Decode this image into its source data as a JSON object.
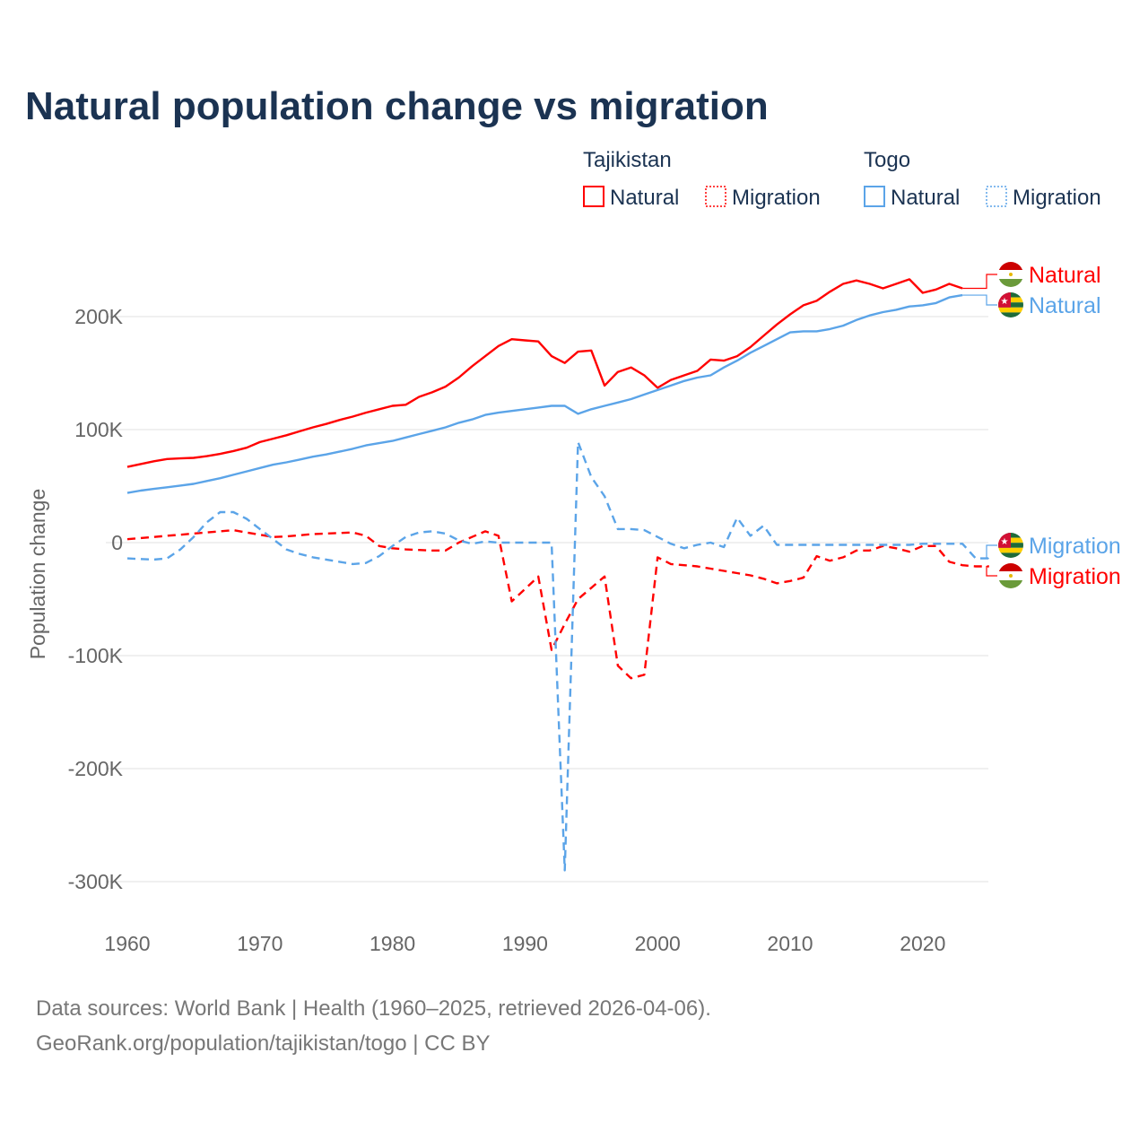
{
  "chart_data": {
    "type": "line",
    "title": "Natural population change vs migration",
    "ylabel": "Population change",
    "xlabel": "",
    "xlim": [
      1960,
      2025
    ],
    "ylim": [
      -300000,
      250000
    ],
    "x_ticks": [
      1960,
      1970,
      1980,
      1990,
      2000,
      2010,
      2020
    ],
    "x_tick_labels": [
      "1960",
      "1970",
      "1980",
      "1990",
      "2000",
      "2010",
      "2020"
    ],
    "y_ticks": [
      200000,
      100000,
      0,
      -100000,
      -200000,
      -300000
    ],
    "y_tick_labels": [
      "200K",
      "100K",
      "0",
      "-100K",
      "-200K",
      "-300K"
    ],
    "grid": true,
    "legend": {
      "placement": "top-right",
      "groups": [
        {
          "country": "Tajikistan",
          "items": [
            "Natural",
            "Migration"
          ]
        },
        {
          "country": "Togo",
          "items": [
            "Natural",
            "Migration"
          ]
        }
      ]
    },
    "series": [
      {
        "name": "Natural",
        "country": "Tajikistan",
        "color": "#ff0000",
        "dash": false,
        "end_label": "Natural",
        "flag": "tajikistan",
        "start_year": 1960,
        "values": [
          67000,
          69500,
          72000,
          74000,
          74500,
          75000,
          76500,
          78500,
          81000,
          84000,
          89000,
          92000,
          95000,
          98500,
          102000,
          105000,
          108500,
          111500,
          115000,
          118000,
          121000,
          122000,
          129000,
          133000,
          138000,
          146000,
          156000,
          165000,
          174000,
          180000,
          179000,
          178000,
          165000,
          159000,
          169000,
          170000,
          139000,
          151000,
          155000,
          148000,
          137000,
          144000,
          148000,
          152000,
          162000,
          161000,
          165000,
          173000,
          183000,
          193000,
          202000,
          210000,
          214000,
          222000,
          229000,
          232000,
          229000,
          225000,
          229000,
          233000,
          221000,
          224000,
          229000,
          225000
        ]
      },
      {
        "name": "Natural",
        "country": "Togo",
        "color": "#5ba4e8",
        "dash": false,
        "end_label": "Natural",
        "flag": "togo",
        "start_year": 1960,
        "values": [
          44000,
          46000,
          47500,
          49000,
          50500,
          52000,
          54500,
          57000,
          60000,
          63000,
          66000,
          69000,
          71000,
          73500,
          76000,
          78000,
          80500,
          83000,
          86000,
          88000,
          90000,
          93000,
          96000,
          99000,
          102000,
          106000,
          109000,
          113000,
          115000,
          116500,
          118000,
          119500,
          121000,
          121000,
          114000,
          118000,
          121000,
          124000,
          127000,
          131000,
          135000,
          139000,
          143000,
          146000,
          148000,
          155000,
          161000,
          168000,
          174000,
          180000,
          186000,
          187000,
          187000,
          189000,
          192000,
          197000,
          201000,
          204000,
          206000,
          209000,
          210000,
          212000,
          217000,
          219000
        ]
      },
      {
        "name": "Migration",
        "country": "Tajikistan",
        "color": "#ff0000",
        "dash": true,
        "end_label": "Migration",
        "flag": "tajikistan",
        "start_year": 1960,
        "values": [
          3000,
          4000,
          5000,
          6000,
          7000,
          8000,
          9000,
          10000,
          11000,
          9000,
          7000,
          5000,
          5500,
          6500,
          7500,
          8000,
          8500,
          9000,
          6000,
          -3000,
          -5000,
          -6000,
          -6500,
          -7000,
          -7000,
          0,
          5000,
          10000,
          6000,
          -52000,
          -41000,
          -30000,
          -95000,
          -72000,
          -50000,
          -40000,
          -30000,
          -109000,
          -120000,
          -117000,
          -13000,
          -19000,
          -20000,
          -21000,
          -23000,
          -25000,
          -27000,
          -29000,
          -32000,
          -36000,
          -34000,
          -31000,
          -12000,
          -16000,
          -13000,
          -7000,
          -7000,
          -3000,
          -5000,
          -8000,
          -3000,
          -3000,
          -17000,
          -20000,
          -21000,
          -21000
        ]
      },
      {
        "name": "Migration",
        "country": "Togo",
        "color": "#5ba4e8",
        "dash": true,
        "end_label": "Migration",
        "flag": "togo",
        "start_year": 1960,
        "values": [
          -14000,
          -14500,
          -15000,
          -14000,
          -6000,
          5000,
          18000,
          27000,
          27000,
          21000,
          12000,
          3000,
          -6000,
          -10000,
          -13000,
          -15000,
          -17000,
          -19000,
          -18000,
          -12000,
          -3000,
          5000,
          9000,
          10000,
          8000,
          2000,
          -1000,
          1000,
          0,
          0,
          0,
          0,
          0,
          -290000,
          89000,
          58000,
          41000,
          12000,
          12000,
          11000,
          5000,
          -1000,
          -5000,
          -2000,
          0,
          -4000,
          22000,
          6000,
          15000,
          -2000,
          -2000,
          -2000,
          -2000,
          -2000,
          -2000,
          -2000,
          -2000,
          -2000,
          -2000,
          -2000,
          -1000,
          -1000,
          -1000,
          -1000,
          -14000,
          -14000
        ]
      }
    ]
  },
  "footer": {
    "source": "Data sources: World Bank | Health (1960–2025, retrieved 2026-04-06).",
    "url": "GeoRank.org/population/tajikistan/togo | CC BY"
  }
}
